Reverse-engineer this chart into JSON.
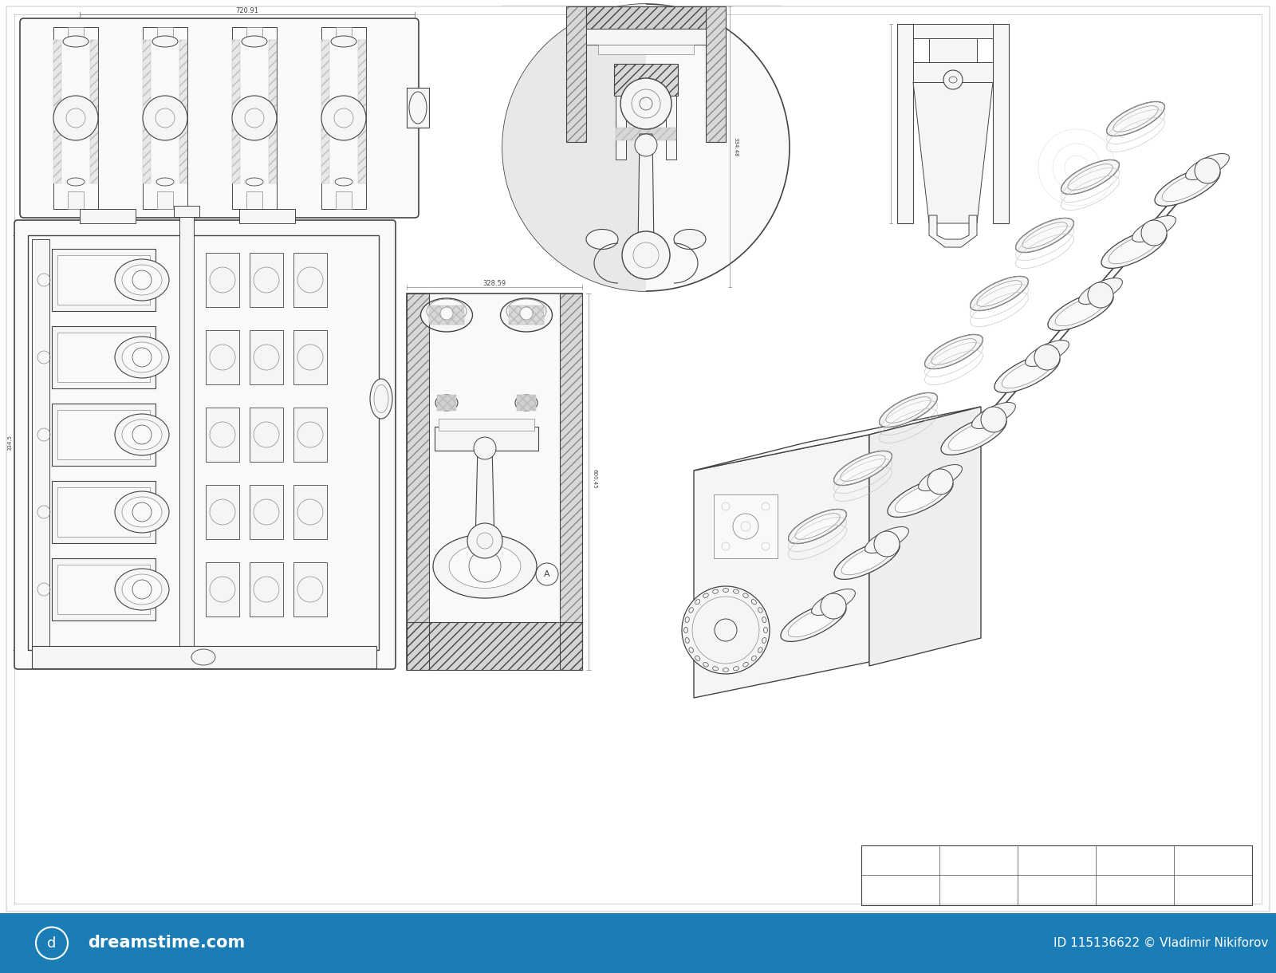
{
  "bg_color": "#ffffff",
  "line_color": "#444444",
  "light_line_color": "#888888",
  "lighter_line_color": "#bbbbbb",
  "very_light_color": "#dddddd",
  "footer_color": "#1b7db5",
  "footer_text_color": "#ffffff",
  "footer_left_text": "dreamstime.com",
  "footer_right_text": "ID 115136622 © Vladimir Nikiforov",
  "hatch_fill": "#e0e0e0",
  "mid_fill": "#eeeeee",
  "light_fill": "#f5f5f5",
  "near_white": "#f9f9f9",
  "fig_width": 16.0,
  "fig_height": 12.2
}
